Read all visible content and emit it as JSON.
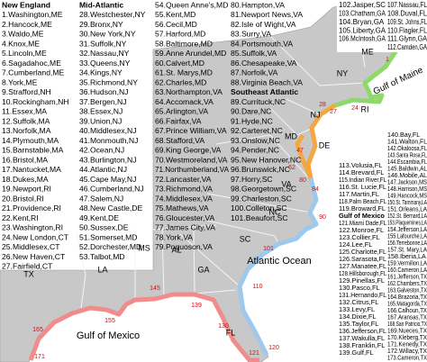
{
  "legend_columns": [
    {
      "sections": [
        {
          "heading": "New England",
          "items": [
            "1.Washington,ME",
            "2.Hancock,ME",
            "3.Waldo,ME",
            "4.Knox,ME",
            "5.Lincoln,ME",
            "6.Sagadahoc,ME",
            "7.Cumberland,ME",
            "8.York,ME",
            "9.Strafford,NH",
            "10.Rockingham,NH",
            "11.Essex,MA",
            "12.Suffolk,MA",
            "13.Norfolk,MA",
            "14.Plymouth,MA",
            "15.Barnstable,MA",
            "16.Bristol,MA",
            "17.Nantucket,MA",
            "18.Dukes,MA",
            "19.Newport,RI",
            "20.Bristol,RI",
            "21.Providence,RI",
            "22.Kent,RI",
            "23.Washington,RI",
            "24.New London,CT",
            "25.Middlesex,CT",
            "26.New Haven,CT",
            "27.Fairfield,CT"
          ]
        }
      ]
    },
    {
      "sections": [
        {
          "heading": "Mid-Atlantic",
          "items": [
            "28.Westchester,NY",
            "29.Bronx,NY",
            "30.New York,NY",
            "31.Suffolk,NY",
            "32.Nassau,NY",
            "33.Queens,NY",
            "34.Kings,NY",
            "35.Richmond,NY",
            "36.Hudson,NJ",
            "37.Bergen,NJ",
            "38.Essex,NJ",
            "39.Union,NJ",
            "40.Middlesex,NJ",
            "41.Monmouth,NJ",
            "42.Ocean,NJ",
            "43.Burlington,NJ",
            "44.Atlantic,NJ",
            "45.Cape May,NJ",
            "46.Cumberland,NJ",
            "47.Salem,NJ",
            "48.New Castle,DE",
            "49.Kent,DE",
            "50.Sussex,DE",
            "51.Somerset,MD",
            "52.Dorchester,MD",
            "53.Talbot,MD"
          ]
        }
      ]
    },
    {
      "sections": [
        {
          "items": [
            "54.Queen Anne's,MD",
            "55.Kent,MD",
            "56.Cecil,MD",
            "57.Harford,MD",
            "58.Baltimore,MD",
            "59.Anne Arundel,MD",
            "60.Calvert,MD",
            "61.St. Marys,MD",
            "62.Charles,MD",
            "63.Northampton,VA",
            "64.Accomack,VA",
            "65.Arlington,VA",
            "66.Fairfax,VA",
            "67.Prince William,VA",
            "68.Stafford,VA",
            "69.King George,VA",
            "70.Westmoreland,VA",
            "71.Northumberland,VA",
            "72.Lancaster,VA",
            "73.Richmond,VA",
            "74.Middlesex,VA",
            "75.Mathews,VA",
            "76.Gloucester,VA",
            "77.James City,VA",
            "78.York,VA",
            "79.Poquoson,VA"
          ]
        }
      ]
    },
    {
      "sections": [
        {
          "items": [
            "80.Hampton,VA",
            "81.Newport News,VA",
            "82.Isle of Wight,VA",
            "83.Surry,VA",
            "84.Portsmouth,VA",
            "85.Suffolk,VA",
            "86.Chesapeake,VA",
            "87.Norfolk,VA",
            "88.Virginia Beach,VA"
          ]
        },
        {
          "heading": "Southeast Atlantic",
          "items": [
            "89.Currituck,NC",
            "90.Dare,NC",
            "91.Hyde,NC",
            "92.Carteret,NC",
            "93.Onslow,NC",
            "94.Pender,NC",
            "95.New Hanover,NC",
            "96.Brunswick,NC",
            "97.Horry,SC",
            "98.Georgetown,SC",
            "99.Charleston,SC",
            "100.Colleton,SC",
            "101.Beaufort,SC"
          ]
        }
      ]
    },
    {
      "sections": [
        {
          "items": [
            "102.Jasper,SC",
            "103.Chatham,GA",
            "104.Bryan,GA",
            "105.Liberty,GA",
            "106.McIntosh,GA"
          ]
        }
      ]
    },
    {
      "sections": [
        {
          "items": [
            "107.Nassau,FL",
            "108.Duval,FL",
            "109.St. Johns,FL",
            "110.Flagler,FL",
            "111.Glynn,GA",
            "112.Camden,GA"
          ]
        }
      ]
    },
    {
      "sections": [
        {
          "items": [
            "113.Volusia,FL",
            "114.Brevard,FL",
            "115.Indian River,FL",
            "116.St. Lucie,FL",
            "117.Martin,FL",
            "118.Palm Beach,FL",
            "119.Broward,FL"
          ]
        },
        {
          "heading": "Gulf of Mexico",
          "items": [
            "121.Miami Dade,FL",
            "122.Monroe,FL",
            "123.Collier,FL",
            "124.Lee,FL",
            "125.Charlotte,FL",
            "126.Sarasota,FL",
            "127.Manatee,FL",
            "128.Hillsborough,FL",
            "129.Pinellas,FL",
            "130.Pasco,FL",
            "131.Hernando,FL",
            "132.Citrus,FL",
            "133.Levy,FL",
            "134.Dixie,FL",
            "135.Taylor,FL",
            "136.Jefferson,FL",
            "137.Wakulla,FL",
            "138.Franklin,FL",
            "139.Gulf,FL"
          ]
        }
      ]
    },
    {
      "sections": [
        {
          "items": [
            "140.Bay,FL",
            "141.Walton,FL",
            "142.Okaloosa,FL",
            "143.Santa Rosa,FL",
            "144.Escambia,FL",
            "145.Baldwin,AL",
            "146.Mobile,AL",
            "147.Jackson,MS",
            "148.Harrison,MS",
            "149.Hancock,MS",
            "150.St. Tammany,LA",
            "151.Orleans,LA",
            "152.St. Bernard,LA",
            "153.Plaquemines,LA",
            "154.Jefferson,LA",
            "155.Lafourche,LA",
            "156.Terrebonne,LA",
            "157.St. Mary,LA",
            "158.Iberia,LA",
            "159.Vermilion,LA",
            "160.Cameron,LA",
            "161.Jefferson,TX",
            "162.Chambers,TX",
            "163.Galveston,TX",
            "164.Brazoria,TX",
            "165.Matagorda,TX",
            "166.Calhoun,TX",
            "167.Aransas,TX",
            "168.San Patricio,TX",
            "169.Nueces,TX",
            "170.Kleberg,TX",
            "171.Kenedy,TX",
            "172.Willacy,TX",
            "173.Cameron,TX"
          ]
        }
      ]
    }
  ],
  "map": {
    "states": [
      "ME",
      "NY",
      "RI",
      "NJ",
      "MD",
      "DE",
      "VA",
      "NC",
      "SC",
      "GA",
      "AL",
      "MS",
      "LA",
      "TX",
      "FL"
    ],
    "water": [
      "Gulf of Maine",
      "Atlantic Ocean",
      "Gulf of Mexico"
    ],
    "markers": [
      "1",
      "24",
      "27",
      "28",
      "47",
      "62",
      "80",
      "84",
      "90",
      "101",
      "110",
      "120",
      "121",
      "130",
      "139",
      "145",
      "155",
      "165",
      "171"
    ]
  }
}
